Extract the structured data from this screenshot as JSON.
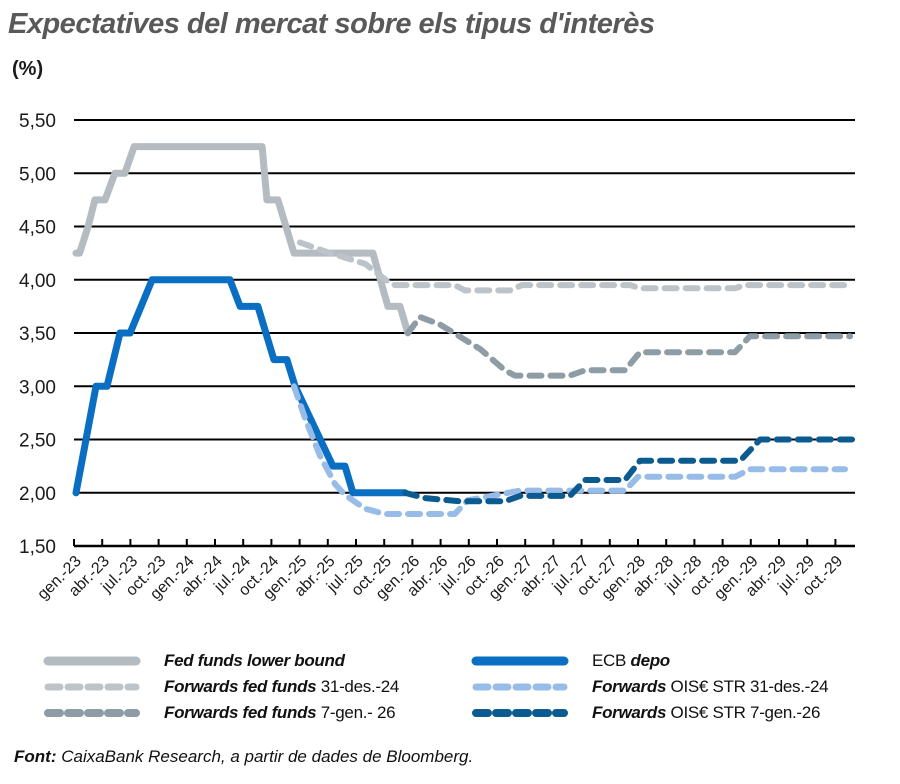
{
  "header": {
    "title": "Expectatives del mercat sobre els tipus d'interès",
    "unit": "(%)"
  },
  "footer": {
    "source_label": "Font:",
    "source_text": " CaixaBank Research, a partir de dades de Bloomberg."
  },
  "colors": {
    "fed": "#b4bcc2",
    "fed_fwd_dec24": "#bcc4c9",
    "fed_fwd_jan26": "#8e9ca5",
    "ecb": "#0a6fc2",
    "ois_fwd_dec24": "#98bce8",
    "ois_fwd_jan26": "#0b5a90",
    "grid": "#000000",
    "title": "#595959"
  },
  "legend": [
    {
      "name": "Fed funds lower bound",
      "italic": "Fed funds lower bound",
      "rest": "",
      "series": 0
    },
    {
      "name": "Forwards fed funds 31-des.-24",
      "italic": "Forwards fed funds",
      "rest": " 31-des.-24",
      "series": 1
    },
    {
      "name": "Forwards fed funds 7-gen.- 26",
      "italic": "Forwards fed funds",
      "rest": " 7-gen.- 26",
      "series": 2
    },
    {
      "name": "ECB depo",
      "italic": "depo",
      "prefix": "ECB ",
      "rest": "",
      "series": 3
    },
    {
      "name": "Forwards OIS€ STR 31-des.-24",
      "italic": "Forwards",
      "rest": " OIS€ STR 31-des.-24",
      "series": 4
    },
    {
      "name": "Forwards OIS€ STR 7-gen.-26",
      "italic": "Forwards",
      "rest": " OIS€ STR 7-gen.-26",
      "series": 5
    }
  ],
  "chart_data": {
    "type": "line",
    "title": "Expectatives del mercat sobre els tipus d'interès",
    "xlabel": "",
    "ylabel": "(%)",
    "ylim": [
      1.5,
      5.5
    ],
    "yticks": [
      "1,50",
      "2,00",
      "2,50",
      "3,00",
      "3,50",
      "4,00",
      "4,50",
      "5,00",
      "5,50"
    ],
    "ytick_values": [
      1.5,
      2.0,
      2.5,
      3.0,
      3.5,
      4.0,
      4.5,
      5.0,
      5.5
    ],
    "grid": true,
    "legend_position": "bottom",
    "categories": [
      "gen.-23",
      "abr.-23",
      "jul.-23",
      "oct.-23",
      "gen.-24",
      "abr.-24",
      "jul.-24",
      "oct.-24",
      "gen.-25",
      "abr.-25",
      "jul.-25",
      "oct.-25",
      "gen.-26",
      "abr.-26",
      "jul.-26",
      "oct.-26",
      "gen.-27",
      "abr.-27",
      "jul.-27",
      "oct.-27",
      "gen.-28",
      "abr.-28",
      "jul.-28",
      "oct.-28",
      "gen.-29",
      "abr.-29",
      "jul.-29",
      "oct.-29"
    ],
    "x_note": "points are [quarter_index, value]; index 0 = gen.-23",
    "series": [
      {
        "name": "Fed funds lower bound",
        "style": "solid",
        "color": "#b4bcc2",
        "points": [
          [
            0.07,
            4.25
          ],
          [
            0.2,
            4.25
          ],
          [
            0.5,
            4.5
          ],
          [
            0.74,
            4.75
          ],
          [
            1.1,
            4.75
          ],
          [
            1.45,
            5.0
          ],
          [
            1.8,
            5.0
          ],
          [
            2.13,
            5.25
          ],
          [
            6.67,
            5.25
          ],
          [
            6.84,
            4.75
          ],
          [
            7.23,
            4.75
          ],
          [
            7.8,
            4.25
          ],
          [
            10.6,
            4.25
          ],
          [
            11.13,
            3.75
          ],
          [
            11.56,
            3.75
          ],
          [
            11.84,
            3.5
          ]
        ]
      },
      {
        "name": "Forwards fed funds 31-des.-24",
        "style": "dashed",
        "color": "#bcc4c9",
        "points": [
          [
            8.01,
            4.35
          ],
          [
            9.08,
            4.25
          ],
          [
            10.32,
            4.15
          ],
          [
            11.2,
            3.97
          ],
          [
            11.38,
            3.95
          ],
          [
            13.5,
            3.95
          ],
          [
            13.87,
            3.9
          ],
          [
            15.46,
            3.9
          ],
          [
            15.89,
            3.95
          ],
          [
            19.72,
            3.95
          ],
          [
            20.07,
            3.92
          ],
          [
            23.44,
            3.92
          ],
          [
            23.79,
            3.95
          ],
          [
            27.34,
            3.95
          ]
        ]
      },
      {
        "name": "Forwards fed funds 7-gen.- 26",
        "style": "dashed",
        "color": "#8e9ca5",
        "points": [
          [
            11.84,
            3.5
          ],
          [
            12.27,
            3.65
          ],
          [
            12.98,
            3.58
          ],
          [
            14.4,
            3.35
          ],
          [
            15.28,
            3.15
          ],
          [
            15.64,
            3.1
          ],
          [
            17.59,
            3.1
          ],
          [
            18.12,
            3.15
          ],
          [
            19.54,
            3.15
          ],
          [
            20.07,
            3.32
          ],
          [
            23.44,
            3.32
          ],
          [
            23.97,
            3.47
          ],
          [
            27.52,
            3.47
          ]
        ]
      },
      {
        "name": "ECB depo",
        "style": "solid",
        "color": "#0a6fc2",
        "points": [
          [
            0.07,
            2.0
          ],
          [
            0.78,
            3.0
          ],
          [
            1.17,
            3.0
          ],
          [
            1.63,
            3.5
          ],
          [
            1.99,
            3.5
          ],
          [
            2.77,
            4.0
          ],
          [
            5.53,
            4.0
          ],
          [
            5.89,
            3.75
          ],
          [
            6.52,
            3.75
          ],
          [
            7.09,
            3.25
          ],
          [
            7.55,
            3.25
          ],
          [
            7.84,
            3.0
          ],
          [
            9.18,
            2.25
          ],
          [
            9.61,
            2.25
          ],
          [
            9.89,
            2.0
          ],
          [
            11.74,
            2.0
          ]
        ]
      },
      {
        "name": "Forwards OIS€ STR 31-des.-24",
        "style": "dashed",
        "color": "#98bce8",
        "points": [
          [
            7.8,
            3.0
          ],
          [
            8.19,
            2.7
          ],
          [
            8.72,
            2.35
          ],
          [
            9.26,
            2.08
          ],
          [
            9.61,
            1.98
          ],
          [
            10.32,
            1.85
          ],
          [
            11.03,
            1.8
          ],
          [
            13.5,
            1.8
          ],
          [
            13.97,
            1.93
          ],
          [
            15.82,
            2.02
          ],
          [
            19.54,
            2.02
          ],
          [
            20.0,
            2.15
          ],
          [
            23.44,
            2.15
          ],
          [
            23.97,
            2.22
          ],
          [
            27.34,
            2.22
          ]
        ]
      },
      {
        "name": "Forwards OIS€ STR 7-gen.-26",
        "style": "dashed",
        "color": "#0b5a90",
        "points": [
          [
            11.74,
            2.0
          ],
          [
            12.45,
            1.95
          ],
          [
            13.69,
            1.92
          ],
          [
            15.28,
            1.92
          ],
          [
            15.82,
            1.97
          ],
          [
            17.59,
            1.97
          ],
          [
            18.12,
            2.12
          ],
          [
            19.54,
            2.12
          ],
          [
            20.07,
            2.3
          ],
          [
            23.62,
            2.3
          ],
          [
            24.33,
            2.5
          ],
          [
            27.7,
            2.5
          ]
        ]
      }
    ]
  }
}
